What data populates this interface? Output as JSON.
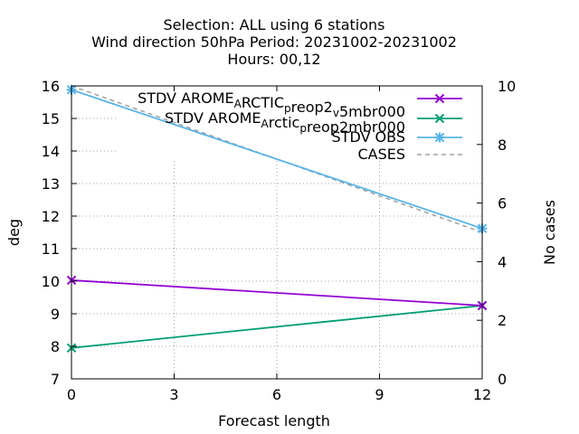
{
  "chart_data": {
    "type": "line",
    "title_lines": [
      "Selection: ALL using     6 stations",
      "Wind direction 50hPa   Period: 20231002-20231002",
      "Hours:  00,12"
    ],
    "xlabel": "Forecast length",
    "ylabel": "deg",
    "y2label": "No cases",
    "xlim": [
      0,
      12
    ],
    "ylim": [
      7,
      16
    ],
    "y2lim": [
      0,
      10
    ],
    "xticks": [
      0,
      3,
      6,
      9,
      12
    ],
    "yticks": [
      7,
      8,
      9,
      10,
      11,
      12,
      13,
      14,
      15,
      16
    ],
    "y2ticks": [
      0,
      2,
      4,
      6,
      8,
      10
    ],
    "grid": true,
    "legend_position": "top-right",
    "series": [
      {
        "name": "STDV AROME_ARCTIC_preop2_v5mbr000",
        "legend_parts": [
          {
            "t": "STDV AROME",
            "s": "n"
          },
          {
            "t": "A",
            "s": "sub"
          },
          {
            "t": "RCTIC",
            "s": "n"
          },
          {
            "t": "p",
            "s": "sub"
          },
          {
            "t": "reop2",
            "s": "n"
          },
          {
            "t": "v",
            "s": "sub"
          },
          {
            "t": "5mbr000",
            "s": "n"
          }
        ],
        "color": "#9400d3",
        "marker": "x",
        "axis": "y",
        "x": [
          0,
          12
        ],
        "y": [
          10.03,
          9.25
        ]
      },
      {
        "name": "STDV AROME_Arctic_preop2mbr000",
        "legend_parts": [
          {
            "t": "STDV AROME",
            "s": "n"
          },
          {
            "t": "A",
            "s": "sub"
          },
          {
            "t": "rctic",
            "s": "n"
          },
          {
            "t": "p",
            "s": "sub"
          },
          {
            "t": "reop2mbr000",
            "s": "n"
          }
        ],
        "color": "#009e73",
        "marker": "x",
        "axis": "y",
        "x": [
          0,
          12
        ],
        "y": [
          7.95,
          9.25
        ]
      },
      {
        "name": "STDV OBS",
        "legend_parts": [
          {
            "t": "STDV OBS",
            "s": "n"
          }
        ],
        "color": "#56b4e9",
        "marker": "star",
        "axis": "y",
        "x": [
          0,
          12
        ],
        "y": [
          15.88,
          11.62
        ]
      },
      {
        "name": "CASES",
        "legend_parts": [
          {
            "t": "CASES",
            "s": "n"
          }
        ],
        "color": "#a0a0a0",
        "marker": "none",
        "dashed": true,
        "axis": "y2",
        "x": [
          0,
          12
        ],
        "y": [
          10,
          5
        ]
      }
    ]
  }
}
